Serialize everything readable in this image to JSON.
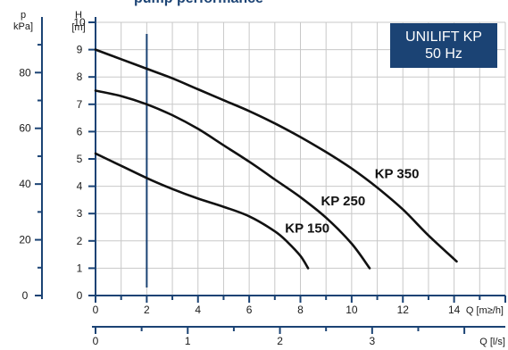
{
  "header": {
    "clipped_text": "pump performance"
  },
  "title_box": {
    "line1": "UNILIFT KP",
    "line2": "50 Hz"
  },
  "colors": {
    "navy": "#1b4374",
    "curve": "#111111",
    "grid": "#c8c8c8",
    "background": "#ffffff"
  },
  "chart_data": {
    "type": "line",
    "title": "UNILIFT KP 50 Hz",
    "xlabel": "Q [m³/h]",
    "ylabel": "H [m]",
    "xlim": [
      0,
      16
    ],
    "ylim": [
      0,
      10
    ],
    "grid": true,
    "x_ticks": [
      "0",
      "2",
      "4",
      "6",
      "8",
      "10",
      "12",
      "14"
    ],
    "y_ticks": [
      "0",
      "1",
      "2",
      "3",
      "4",
      "5",
      "6",
      "7",
      "8",
      "9",
      "10"
    ],
    "secondary_y": {
      "label": "p",
      "unit": "kPa]",
      "unit_text": "[m]",
      "ticks": [
        "0",
        "20",
        "40",
        "60",
        "80"
      ],
      "tick_values": [
        0,
        20,
        40,
        60,
        80
      ],
      "ratio_m_per_kpa": 0.102
    },
    "secondary_x": {
      "label": "Q [l/s]",
      "ticks": [
        "0",
        "1",
        "2",
        "3"
      ],
      "tick_values": [
        0,
        1,
        2,
        3
      ],
      "ratio_m3h_per_ls": 3.6
    },
    "h_axis_label": "H",
    "q_m3h_label": "Q [m≥/h]",
    "q_ls_label": "Q [l/s]",
    "reference_line_x": 2,
    "series": [
      {
        "name": "KP 150",
        "label_at": [
          7.4,
          2.3
        ],
        "x": [
          0,
          1,
          2,
          3,
          4,
          5,
          6,
          7,
          7.5,
          8,
          8.3
        ],
        "y": [
          5.2,
          4.75,
          4.3,
          3.9,
          3.55,
          3.25,
          2.9,
          2.35,
          1.95,
          1.45,
          1.0
        ]
      },
      {
        "name": "KP 250",
        "label_at": [
          8.8,
          3.3
        ],
        "x": [
          0,
          1,
          2,
          3,
          4,
          5,
          6,
          7,
          8,
          9,
          10,
          10.7
        ],
        "y": [
          7.5,
          7.3,
          7.0,
          6.6,
          6.1,
          5.5,
          4.9,
          4.25,
          3.6,
          2.85,
          1.9,
          1.0
        ]
      },
      {
        "name": "KP 350",
        "label_at": [
          10.9,
          4.3
        ],
        "x": [
          0,
          1,
          2,
          3,
          4,
          5,
          6,
          7,
          8,
          9,
          10,
          11,
          12,
          13,
          14.1
        ],
        "y": [
          9.0,
          8.65,
          8.3,
          7.95,
          7.55,
          7.15,
          6.75,
          6.3,
          5.8,
          5.25,
          4.65,
          3.95,
          3.15,
          2.2,
          1.25
        ]
      }
    ]
  }
}
